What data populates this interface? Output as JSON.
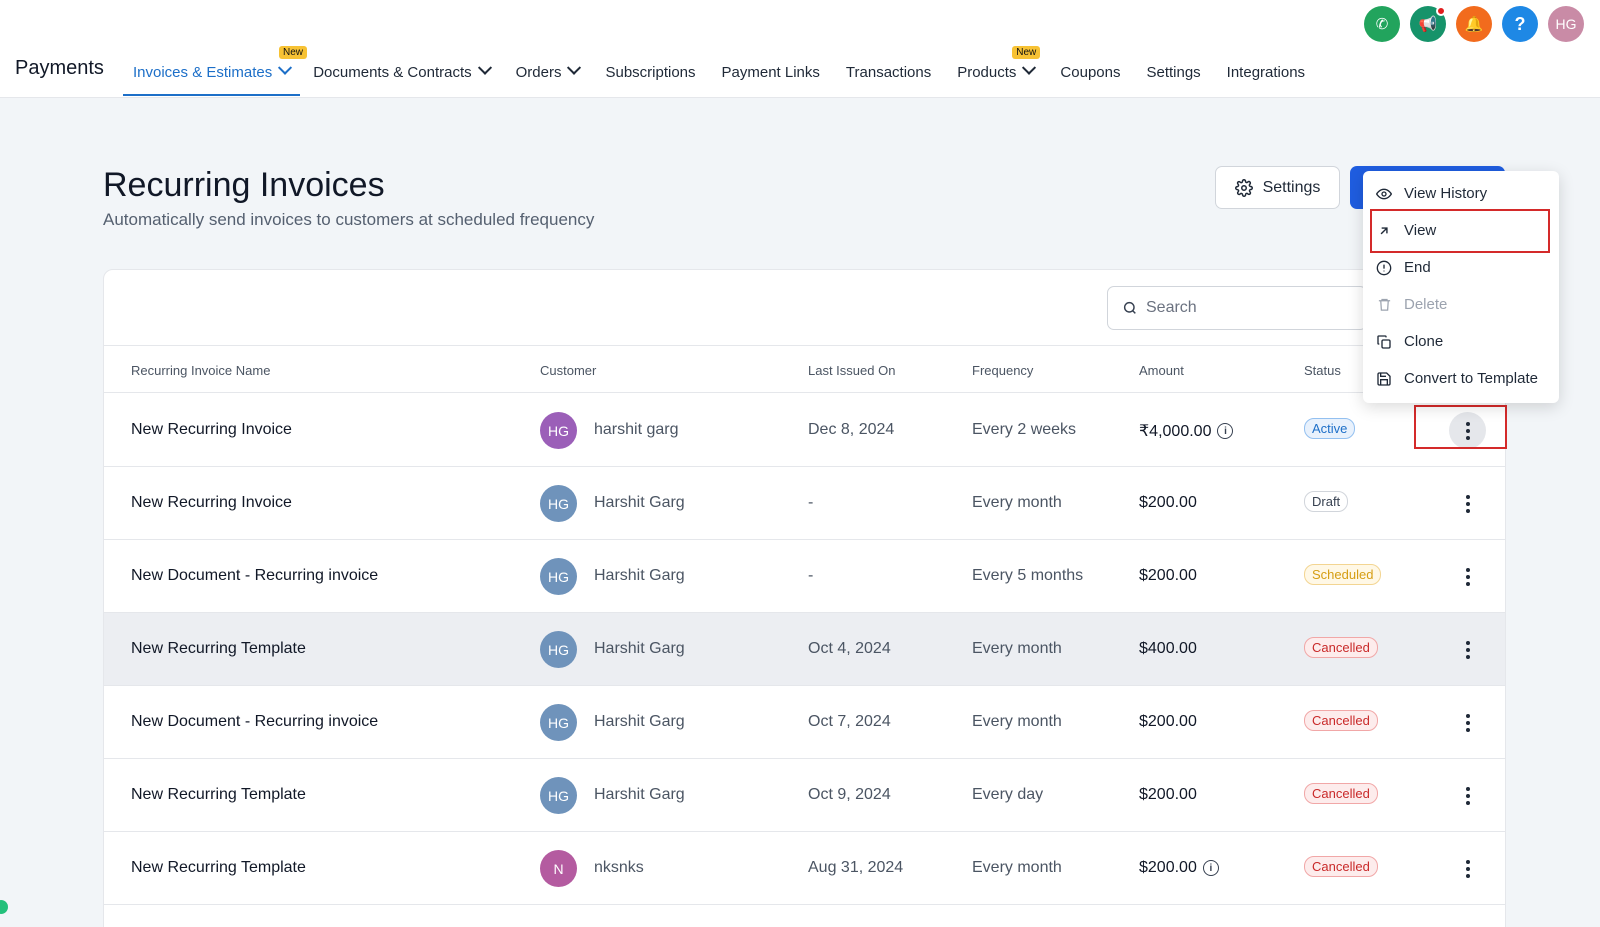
{
  "header": {
    "brand": "Payments",
    "nav": [
      {
        "label": "Invoices & Estimates",
        "badge": "New",
        "dropdown": true,
        "active": true
      },
      {
        "label": "Documents & Contracts",
        "dropdown": true
      },
      {
        "label": "Orders",
        "dropdown": true
      },
      {
        "label": "Subscriptions"
      },
      {
        "label": "Payment Links"
      },
      {
        "label": "Transactions"
      },
      {
        "label": "Products",
        "badge": "New",
        "dropdown": true
      },
      {
        "label": "Coupons"
      },
      {
        "label": "Settings"
      },
      {
        "label": "Integrations"
      }
    ],
    "icons": {
      "phone": "phone-icon",
      "megaphone": "megaphone-icon",
      "bell": "bell-icon",
      "help": "?",
      "avatar": "HG"
    }
  },
  "page": {
    "title": "Recurring Invoices",
    "subtitle": "Automatically send invoices to customers at scheduled frequency",
    "settings_label": "Settings"
  },
  "search": {
    "placeholder": "Search"
  },
  "table": {
    "columns": [
      "Recurring Invoice Name",
      "Customer",
      "Last Issued On",
      "Frequency",
      "Amount",
      "Status"
    ],
    "rows": [
      {
        "name": "New Recurring Invoice",
        "initials": "HG",
        "customer": "harshit garg",
        "last_issued": "Dec 8, 2024",
        "frequency": "Every 2 weeks",
        "amount": "₹4,000.00",
        "status": "Active",
        "avatar_color": "#9b5fb8",
        "info": true
      },
      {
        "name": "New Recurring Invoice",
        "initials": "HG",
        "customer": "Harshit Garg",
        "last_issued": "-",
        "frequency": "Every month",
        "amount": "$200.00",
        "status": "Draft",
        "avatar_color": "#6f93bb"
      },
      {
        "name": "New Document - Recurring invoice",
        "initials": "HG",
        "customer": "Harshit Garg",
        "last_issued": "-",
        "frequency": "Every 5 months",
        "amount": "$200.00",
        "status": "Scheduled",
        "avatar_color": "#6f93bb"
      },
      {
        "name": "New Recurring Template",
        "initials": "HG",
        "customer": "Harshit Garg",
        "last_issued": "Oct 4, 2024",
        "frequency": "Every month",
        "amount": "$400.00",
        "status": "Cancelled",
        "avatar_color": "#6f93bb"
      },
      {
        "name": "New Document - Recurring invoice",
        "initials": "HG",
        "customer": "Harshit Garg",
        "last_issued": "Oct 7, 2024",
        "frequency": "Every month",
        "amount": "$200.00",
        "status": "Cancelled",
        "avatar_color": "#6f93bb"
      },
      {
        "name": "New Recurring Template",
        "initials": "HG",
        "customer": "Harshit Garg",
        "last_issued": "Oct 9, 2024",
        "frequency": "Every day",
        "amount": "$200.00",
        "status": "Cancelled",
        "avatar_color": "#6f93bb"
      },
      {
        "name": "New Recurring Template",
        "initials": "N",
        "customer": "nksnks",
        "last_issued": "Aug 31, 2024",
        "frequency": "Every month",
        "amount": "$200.00",
        "status": "Cancelled",
        "avatar_color": "#b45ba0",
        "info": true
      }
    ]
  },
  "menu": {
    "items": [
      {
        "label": "View History",
        "icon": "eye-icon"
      },
      {
        "label": "View",
        "icon": "arrow-up-right-icon"
      },
      {
        "label": "End",
        "icon": "alert-circle-icon"
      },
      {
        "label": "Delete",
        "icon": "trash-icon",
        "disabled": true
      },
      {
        "label": "Clone",
        "icon": "copy-icon"
      },
      {
        "label": "Convert to Template",
        "icon": "save-icon"
      }
    ]
  }
}
